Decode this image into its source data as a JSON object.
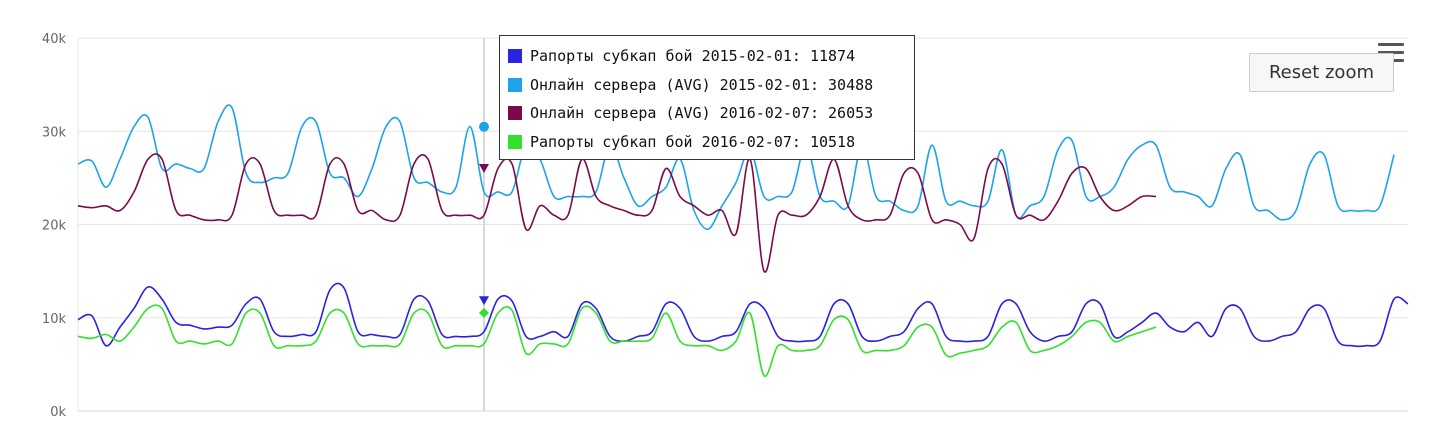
{
  "chart_data": {
    "type": "line",
    "y_ticks": [
      "0k",
      "10k",
      "20k",
      "30k",
      "40k"
    ],
    "ylim": [
      0,
      40000
    ],
    "grid": true,
    "series": [
      {
        "name": "Онлайн сервера (AVG) 2015-02-01",
        "color": "#1ca3ec",
        "values": [
          26500,
          26800,
          24000,
          27000,
          30500,
          31500,
          26000,
          26500,
          26000,
          26000,
          31000,
          32500,
          25500,
          24500,
          25000,
          25500,
          30500,
          31000,
          25500,
          25000,
          23000,
          26000,
          30500,
          31000,
          25000,
          24500,
          23500,
          24000,
          30500,
          23500,
          23500,
          23500,
          28500,
          27000,
          23000,
          23000,
          23000,
          23500,
          28500,
          25000,
          22000,
          23000,
          24000,
          27000,
          21500,
          19500,
          22000,
          24500,
          28000,
          23000,
          23000,
          23500,
          28500,
          23000,
          22500,
          22000,
          28500,
          23000,
          22500,
          21500,
          22000,
          28500,
          22500,
          22500,
          22000,
          22500,
          28000,
          21000,
          22000,
          23000,
          28000,
          29000,
          23000,
          23000,
          24000,
          27000,
          28500,
          28500,
          24000,
          23500,
          23000,
          22000,
          26000,
          27500,
          22000,
          21500,
          20500,
          21500,
          26500,
          27500,
          22000,
          21500,
          21500,
          22000,
          27500
        ]
      },
      {
        "name": "Онлайн сервера (AVG) 2016-02-07",
        "color": "#7a0a4a",
        "values": [
          22000,
          21800,
          22000,
          21500,
          23500,
          27000,
          27000,
          21500,
          21000,
          20500,
          20500,
          21000,
          26500,
          26500,
          21500,
          21000,
          21000,
          21000,
          26500,
          26500,
          21500,
          21500,
          20500,
          21000,
          26500,
          27000,
          21500,
          21000,
          21000,
          21000,
          26000,
          26500,
          19500,
          22000,
          21000,
          21000,
          27000,
          23000,
          22000,
          21500,
          21000,
          21500,
          26000,
          23000,
          22000,
          21000,
          21500,
          19000,
          27000,
          15000,
          21000,
          21000,
          21000,
          23000,
          27000,
          22000,
          20500,
          20500,
          21000,
          25500,
          25500,
          20500,
          20500,
          20000,
          18500,
          26000,
          26500,
          21000,
          21000,
          20500,
          22500,
          25500,
          26000,
          23000,
          21500,
          22000,
          23000,
          23000
        ]
      },
      {
        "name": "Рапорты субкап бой 2015-02-01",
        "color": "#2a22e0",
        "values": [
          9800,
          10200,
          7000,
          9000,
          11000,
          13300,
          12000,
          9500,
          9200,
          8800,
          9000,
          9200,
          11500,
          12000,
          8500,
          8000,
          8200,
          8500,
          13000,
          13200,
          8500,
          8200,
          8000,
          8200,
          12000,
          11800,
          8200,
          8000,
          8000,
          8500,
          12000,
          11800,
          8000,
          8000,
          8500,
          8000,
          11500,
          11000,
          8000,
          7500,
          8000,
          8500,
          11500,
          11000,
          8000,
          7500,
          8000,
          8500,
          11500,
          11000,
          8000,
          7500,
          7500,
          8000,
          11500,
          11500,
          8000,
          7500,
          8000,
          8500,
          11000,
          11500,
          8000,
          7500,
          7500,
          8000,
          11500,
          11500,
          8500,
          7500,
          8000,
          8500,
          11500,
          11500,
          8000,
          8500,
          9500,
          10500,
          9000,
          8500,
          9500,
          8000,
          11000,
          11000,
          8000,
          7500,
          8000,
          8500,
          11000,
          11000,
          7500,
          7000,
          7000,
          7500,
          12000,
          11500
        ]
      },
      {
        "name": "Рапорты субкап бой 2016-02-07",
        "color": "#33e02e",
        "values": [
          8000,
          7800,
          8200,
          7500,
          9000,
          11000,
          11000,
          7500,
          7500,
          7200,
          7500,
          7200,
          10500,
          10500,
          7000,
          7000,
          7000,
          7500,
          10500,
          10500,
          7200,
          7000,
          7000,
          7200,
          10500,
          10500,
          7000,
          7000,
          7000,
          7200,
          10500,
          10800,
          6200,
          7200,
          7200,
          7200,
          11000,
          10500,
          7500,
          7500,
          7500,
          7800,
          10500,
          7500,
          7000,
          7000,
          6500,
          7500,
          10500,
          3800,
          7000,
          6500,
          6500,
          7000,
          9800,
          9800,
          6500,
          6500,
          6500,
          7000,
          9000,
          9000,
          6000,
          6200,
          6500,
          7000,
          9000,
          9500,
          6500,
          6500,
          7000,
          8000,
          9500,
          9500,
          7500,
          8000,
          8500,
          9000
        ]
      }
    ],
    "tooltip": {
      "items": [
        {
          "label": "Рапорты субкап бой 2015-02-01: 11874",
          "color": "#2a22e0"
        },
        {
          "label": "Онлайн сервера (AVG) 2015-02-01: 30488",
          "color": "#1ca3ec"
        },
        {
          "label": "Онлайн сервера (AVG) 2016-02-07: 26053",
          "color": "#7a0a4a"
        },
        {
          "label": "Рапорты субкап бой 2016-02-07: 10518",
          "color": "#33e02e"
        }
      ],
      "hover_index": 29,
      "hover_values": [
        11874,
        30488,
        26053,
        10518
      ]
    }
  },
  "toolbar": {
    "reset_zoom_label": "Reset zoom",
    "menu_icon": "hamburger-menu-icon"
  }
}
